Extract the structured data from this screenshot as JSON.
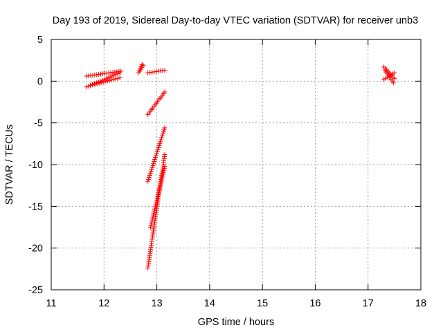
{
  "chart_data": {
    "type": "scatter",
    "title": "Day 193 of 2019, Sidereal Day-to-day VTEC variation (SDTVAR) for receiver unb3",
    "xlabel": "GPS time / hours",
    "ylabel": "SDTVAR / TECUs",
    "xlim": [
      11,
      18
    ],
    "ylim": [
      -25,
      5
    ],
    "xticks": [
      11,
      12,
      13,
      14,
      15,
      16,
      17,
      18
    ],
    "yticks": [
      5,
      0,
      -5,
      -10,
      -15,
      -20,
      -25
    ],
    "grid": true,
    "marker": "+",
    "series_color": "#ff0000",
    "segments": [
      {
        "x_start": 11.67,
        "x_end": 12.32,
        "y_start": 0.6,
        "y_end": 1.2
      },
      {
        "x_start": 11.67,
        "x_end": 12.3,
        "y_start": -0.7,
        "y_end": 1.0
      },
      {
        "x_start": 11.75,
        "x_end": 12.3,
        "y_start": -0.5,
        "y_end": 0.4
      },
      {
        "x_start": 12.65,
        "x_end": 12.72,
        "y_start": 1.0,
        "y_end": 2.0
      },
      {
        "x_start": 12.68,
        "x_end": 12.74,
        "y_start": 1.2,
        "y_end": 1.9
      },
      {
        "x_start": 12.83,
        "x_end": 13.15,
        "y_start": 1.0,
        "y_end": 1.3
      },
      {
        "x_start": 12.83,
        "x_end": 13.15,
        "y_start": -4.0,
        "y_end": -1.3
      },
      {
        "x_start": 12.83,
        "x_end": 13.15,
        "y_start": -12.0,
        "y_end": -5.6
      },
      {
        "x_start": 12.83,
        "x_end": 13.15,
        "y_start": -22.4,
        "y_end": -8.8
      },
      {
        "x_start": 12.88,
        "x_end": 13.15,
        "y_start": -17.5,
        "y_end": -10.2
      },
      {
        "x_start": 17.3,
        "x_end": 17.5,
        "y_start": 1.7,
        "y_end": 0.3
      },
      {
        "x_start": 17.3,
        "x_end": 17.5,
        "y_start": 0.2,
        "y_end": 1.0
      },
      {
        "x_start": 17.32,
        "x_end": 17.48,
        "y_start": 1.3,
        "y_end": -0.2
      }
    ]
  }
}
